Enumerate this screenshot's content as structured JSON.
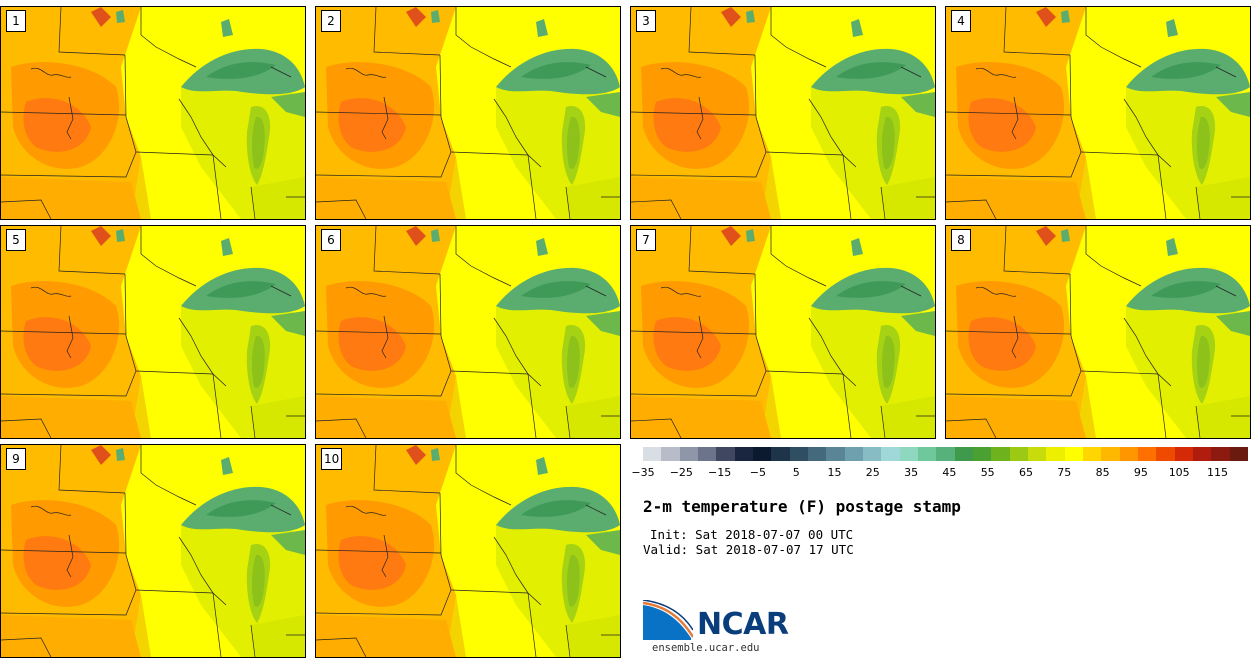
{
  "panels": [
    {
      "label": "1"
    },
    {
      "label": "2"
    },
    {
      "label": "3"
    },
    {
      "label": "4"
    },
    {
      "label": "5"
    },
    {
      "label": "6"
    },
    {
      "label": "7"
    },
    {
      "label": "8"
    },
    {
      "label": "9"
    },
    {
      "label": "10"
    }
  ],
  "colorbar": {
    "colors": [
      "#d9dde4",
      "#b7bcc8",
      "#8f96a8",
      "#6c748c",
      "#3f4860",
      "#1a2540",
      "#0c1a30",
      "#1e3448",
      "#2f4e62",
      "#44697c",
      "#5a8596",
      "#6fa0ae",
      "#87bcc4",
      "#9fd8d6",
      "#8fd8c0",
      "#6ec89c",
      "#56b27a",
      "#3f9a4c",
      "#4aa030",
      "#6eb31e",
      "#9cc914",
      "#c8dc0c",
      "#ecef00",
      "#ffff00",
      "#ffd600",
      "#ffb800",
      "#ff9600",
      "#ff7000",
      "#f04a00",
      "#d42a08",
      "#b01c0e",
      "#8c1a10",
      "#6a1a0e"
    ],
    "ticks": [
      "−35",
      "−25",
      "−15",
      "−5",
      "5",
      "15",
      "25",
      "35",
      "45",
      "55",
      "65",
      "75",
      "85",
      "95",
      "105",
      "115"
    ]
  },
  "title": "2-m temperature (F) postage stamp",
  "init": "Init: Sat 2018-07-07 00 UTC",
  "valid": "Valid: Sat 2018-07-07 17 UTC",
  "logo": {
    "name": "NCAR",
    "url": "ensemble.ucar.edu"
  }
}
